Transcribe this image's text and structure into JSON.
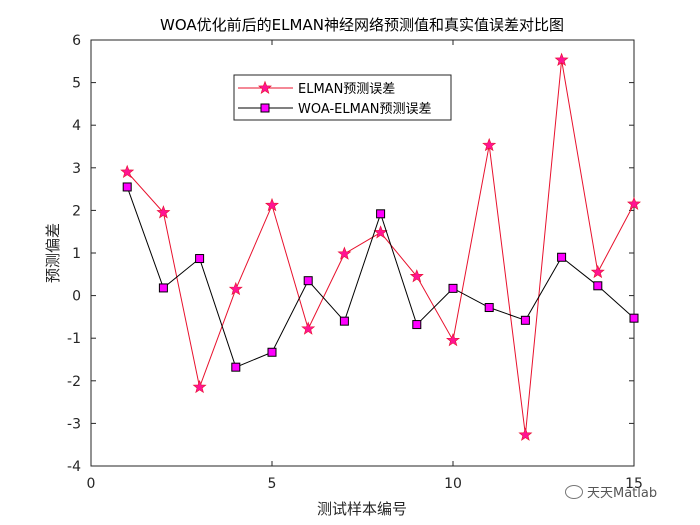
{
  "chart_data": {
    "type": "line",
    "title": "WOA优化前后的ELMAN神经网络预测值和真实值误差对比图",
    "xlabel": "测试样本编号",
    "ylabel": "预测偏差",
    "xlim": [
      0,
      15
    ],
    "ylim": [
      -4,
      6
    ],
    "xticks": [
      0,
      5,
      10,
      15
    ],
    "yticks": [
      -4,
      -3,
      -2,
      -1,
      0,
      1,
      2,
      3,
      4,
      5,
      6
    ],
    "grid": false,
    "legend_position": "top-center",
    "x": [
      1,
      2,
      3,
      4,
      5,
      6,
      7,
      8,
      9,
      10,
      11,
      12,
      13,
      14,
      15
    ],
    "series": [
      {
        "name": "ELMAN预测误差",
        "color": "#e8112d",
        "marker": "star",
        "marker_color": "#ff1493",
        "values": [
          2.9,
          1.95,
          -2.15,
          0.15,
          2.12,
          -0.78,
          0.98,
          1.48,
          0.45,
          -1.05,
          3.53,
          -3.27,
          5.53,
          0.55,
          2.15
        ]
      },
      {
        "name": "WOA-ELMAN预测误差",
        "color": "#000000",
        "marker": "square",
        "marker_color": "#ff00ff",
        "values": [
          2.55,
          0.18,
          0.87,
          -1.68,
          -1.33,
          0.35,
          -0.6,
          1.92,
          -0.68,
          0.17,
          -0.28,
          -0.58,
          0.9,
          0.23,
          -0.53
        ]
      }
    ]
  },
  "watermark": "天天Matlab"
}
